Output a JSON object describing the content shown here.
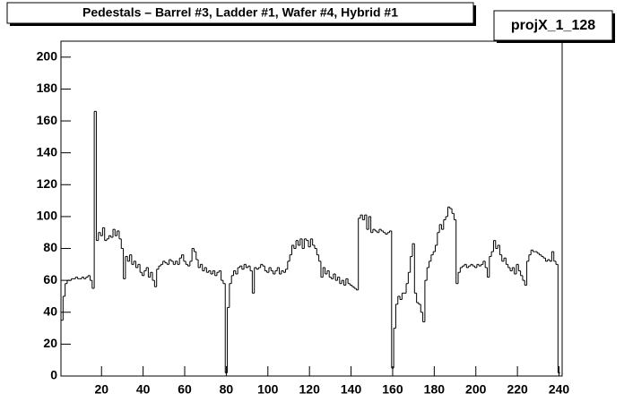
{
  "chart_data": {
    "type": "histogram",
    "title": "Pedestals – Barrel #3, Ladder #1, Wafer #4, Hybrid #1",
    "stats_label": "projX_1_128",
    "color": "#000000",
    "bins": [
      0.5,
      1.5,
      2.5,
      3.5,
      4.5,
      5.5,
      6.5,
      7.5,
      8.5,
      9.5,
      10.5,
      11.5,
      12.5,
      13.5,
      14.5,
      15.5,
      16.5,
      17.5,
      18.5,
      19.5,
      20.5,
      21.5,
      22.5,
      23.5,
      24.5,
      25.5,
      26.5,
      27.5,
      28.5,
      29.5,
      30.5,
      31.5,
      32.5,
      33.5,
      34.5,
      35.5,
      36.5,
      37.5,
      38.5,
      39.5,
      40.5,
      41.5,
      42.5,
      43.5,
      44.5,
      45.5,
      46.5,
      47.5,
      48.5,
      49.5,
      50.5,
      51.5,
      52.5,
      53.5,
      54.5,
      55.5,
      56.5,
      57.5,
      58.5,
      59.5,
      60.5,
      61.5,
      62.5,
      63.5,
      64.5,
      65.5,
      66.5,
      67.5,
      68.5,
      69.5,
      70.5,
      71.5,
      72.5,
      73.5,
      74.5,
      75.5,
      76.5,
      77.5,
      78.5,
      79.5,
      80.5,
      81.5,
      82.5,
      83.5,
      84.5,
      85.5,
      86.5,
      87.5,
      88.5,
      89.5,
      90.5,
      91.5,
      92.5,
      93.5,
      94.5,
      95.5,
      96.5,
      97.5,
      98.5,
      99.5,
      100.5,
      101.5,
      102.5,
      103.5,
      104.5,
      105.5,
      106.5,
      107.5,
      108.5,
      109.5,
      110.5,
      111.5,
      112.5,
      113.5,
      114.5,
      115.5,
      116.5,
      117.5,
      118.5,
      119.5,
      120.5,
      121.5,
      122.5,
      123.5,
      124.5,
      125.5,
      126.5,
      127.5,
      128.5,
      129.5,
      130.5,
      131.5,
      132.5,
      133.5,
      134.5,
      135.5,
      136.5,
      137.5,
      138.5,
      139.5,
      140.5,
      141.5,
      142.5,
      143.5,
      144.5,
      145.5,
      146.5,
      147.5,
      148.5,
      149.5,
      150.5,
      151.5,
      152.5,
      153.5,
      154.5,
      155.5,
      156.5,
      157.5,
      158.5,
      159.5,
      160.5,
      161.5,
      162.5,
      163.5,
      164.5,
      165.5,
      166.5,
      167.5,
      168.5,
      169.5,
      170.5,
      171.5,
      172.5,
      173.5,
      174.5,
      175.5,
      176.5,
      177.5,
      178.5,
      179.5,
      180.5,
      181.5,
      182.5,
      183.5,
      184.5,
      185.5,
      186.5,
      187.5,
      188.5,
      189.5,
      190.5,
      191.5,
      192.5,
      193.5,
      194.5,
      195.5,
      196.5,
      197.5,
      198.5,
      199.5,
      200.5,
      201.5,
      202.5,
      203.5,
      204.5,
      205.5,
      206.5,
      207.5,
      208.5,
      209.5,
      210.5,
      211.5,
      212.5,
      213.5,
      214.5,
      215.5,
      216.5,
      217.5,
      218.5,
      219.5,
      220.5,
      221.5,
      222.5,
      223.5,
      224.5,
      225.5,
      226.5,
      227.5,
      228.5,
      229.5,
      230.5,
      231.5,
      232.5,
      233.5,
      234.5,
      235.5,
      236.5,
      237.5,
      238.5,
      239.5,
      240.5
    ],
    "values": [
      35,
      50,
      58,
      60,
      60,
      61,
      61,
      62,
      61,
      61,
      62,
      61,
      62,
      63,
      60,
      55,
      166,
      85,
      90,
      88,
      93,
      85,
      86,
      88,
      87,
      92,
      88,
      91,
      86,
      80,
      61,
      75,
      72,
      76,
      70,
      72,
      68,
      70,
      65,
      63,
      66,
      68,
      62,
      65,
      60,
      56,
      67,
      69,
      70,
      72,
      71,
      70,
      73,
      72,
      70,
      72,
      70,
      74,
      76,
      72,
      70,
      69,
      72,
      80,
      78,
      73,
      68,
      70,
      66,
      68,
      65,
      66,
      64,
      66,
      63,
      65,
      66,
      60,
      58,
      2,
      43,
      58,
      63,
      66,
      64,
      68,
      69,
      67,
      70,
      68,
      69,
      66,
      52,
      68,
      67,
      68,
      70,
      69,
      66,
      65,
      68,
      66,
      64,
      66,
      68,
      64,
      66,
      65,
      67,
      72,
      76,
      82,
      80,
      85,
      82,
      86,
      80,
      86,
      85,
      81,
      86,
      82,
      80,
      76,
      72,
      62,
      68,
      64,
      66,
      62,
      61,
      64,
      60,
      62,
      58,
      60,
      57,
      61,
      58,
      57,
      56,
      55,
      54,
      99,
      101,
      98,
      101,
      92,
      100,
      90,
      92,
      91,
      90,
      92,
      91,
      90,
      89,
      90,
      91,
      5,
      30,
      45,
      50,
      48,
      52,
      52,
      58,
      65,
      75,
      83,
      52,
      46,
      45,
      40,
      34,
      60,
      68,
      72,
      76,
      78,
      82,
      90,
      95,
      92,
      98,
      100,
      106,
      105,
      102,
      98,
      58,
      65,
      68,
      69,
      70,
      68,
      69,
      70,
      69,
      68,
      70,
      69,
      70,
      72,
      68,
      62,
      75,
      78,
      85,
      80,
      82,
      76,
      72,
      74,
      70,
      68,
      66,
      68,
      64,
      70,
      66,
      63,
      60,
      57,
      72,
      76,
      79,
      78,
      78,
      77,
      76,
      75,
      74,
      72,
      73,
      72,
      78,
      72,
      70,
      2
    ],
    "xlim": [
      0.5,
      241.5
    ],
    "ylim": [
      0,
      210
    ],
    "xticks": [
      20,
      40,
      60,
      80,
      100,
      120,
      140,
      160,
      180,
      200,
      220,
      240
    ],
    "yticks": [
      0,
      20,
      40,
      60,
      80,
      100,
      120,
      140,
      160,
      180,
      200
    ]
  }
}
